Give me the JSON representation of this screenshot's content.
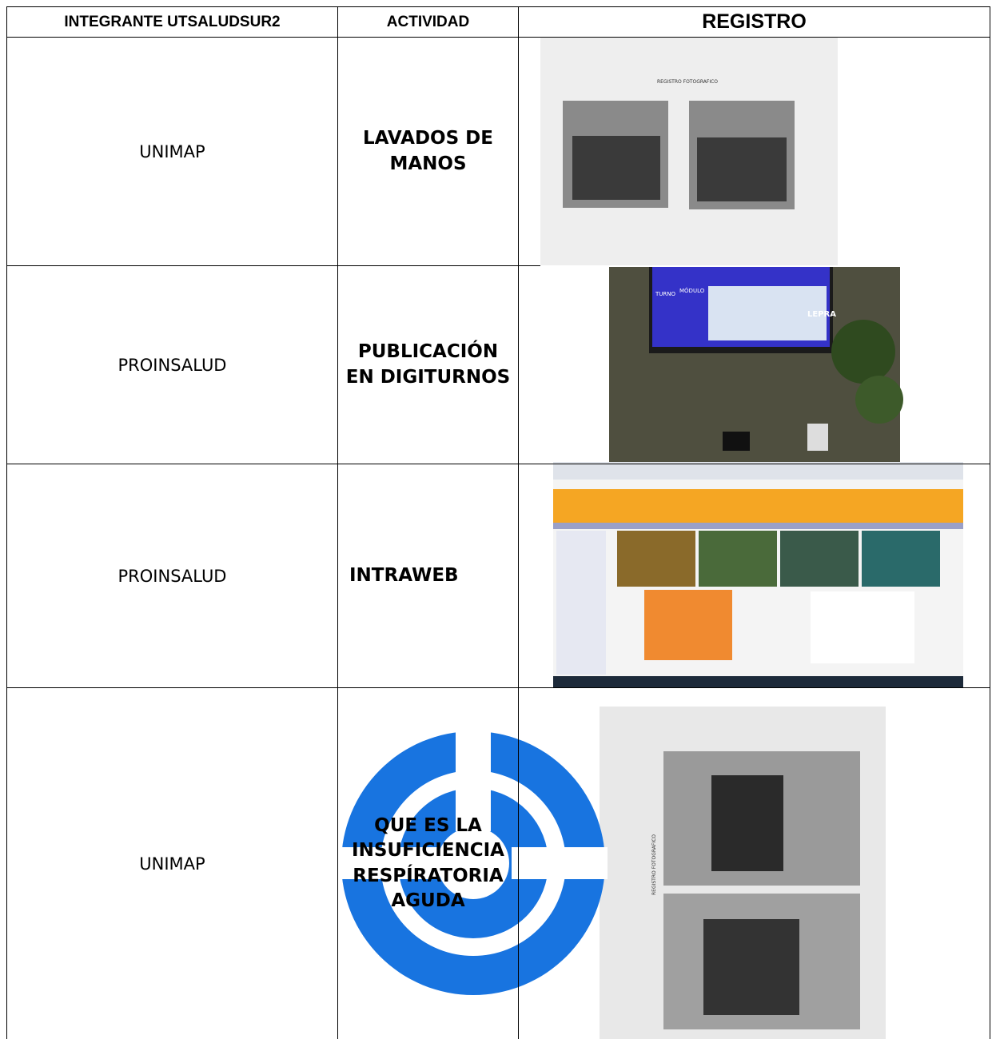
{
  "table": {
    "header": [
      "INTEGRANTE UTSALUDSUR2",
      "ACTIVIDAD",
      "REGISTRO"
    ],
    "rows": [
      [
        "UNIMAP",
        "LAVADOS DE MANOS"
      ],
      [
        "PROINSALUD",
        "PUBLICACIÓN EN DIGITURNOS"
      ],
      [
        "PROINSALUD",
        "INTRAWEB"
      ],
      [
        "UNIMAP",
        "QUE ES LA INSUFICIENCIA RESPÍRATORIA AGUDA"
      ]
    ]
  },
  "photos": {
    "registro_1": "REGISTRO FOTOGRAFICO",
    "screen_word": "LEPRA",
    "turno": "TURNO",
    "modulo": "MÓDULO",
    "registro_4": "REGISTRO FOTOGRAFICO"
  }
}
